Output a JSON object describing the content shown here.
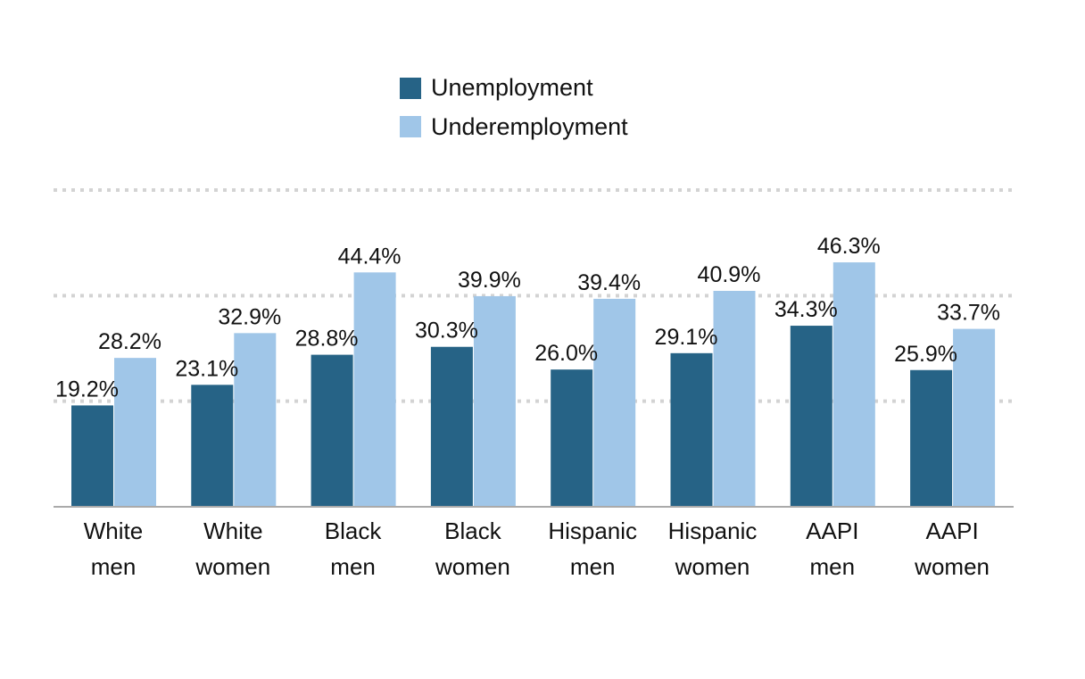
{
  "colors": {
    "unemployment": "#266386",
    "underemployment": "#a0c6e8",
    "grid": "#d3d3d3",
    "axis": "#aaaaaa",
    "text": "#111111"
  },
  "chart_data": {
    "type": "bar",
    "title": "",
    "xlabel": "",
    "ylabel": "",
    "ylim": [
      0,
      60
    ],
    "grid": true,
    "legend_position": "top-center",
    "categories": [
      [
        "White",
        "men"
      ],
      [
        "White",
        "women"
      ],
      [
        "Black",
        "men"
      ],
      [
        "Black",
        "women"
      ],
      [
        "Hispanic",
        "men"
      ],
      [
        "Hispanic",
        "women"
      ],
      [
        "AAPI",
        "men"
      ],
      [
        "AAPI",
        "women"
      ]
    ],
    "series": [
      {
        "name": "Unemployment",
        "values": [
          19.2,
          23.1,
          28.8,
          30.3,
          26.0,
          29.1,
          34.3,
          25.9
        ],
        "labels": [
          "19.2%",
          "23.1%",
          "28.8%",
          "30.3%",
          "26.0%",
          "29.1%",
          "34.3%",
          "25.9%"
        ]
      },
      {
        "name": "Underemployment",
        "values": [
          28.2,
          32.9,
          44.4,
          39.9,
          39.4,
          40.9,
          46.3,
          33.7
        ],
        "labels": [
          "28.2%",
          "32.9%",
          "44.4%",
          "39.9%",
          "39.4%",
          "40.9%",
          "46.3%",
          "33.7%"
        ]
      }
    ]
  }
}
